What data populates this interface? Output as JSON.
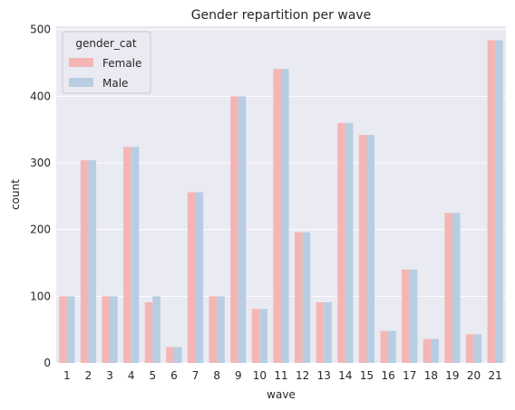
{
  "chart_data": {
    "type": "bar",
    "title": "Gender repartition per wave",
    "xlabel": "wave",
    "ylabel": "count",
    "categories": [
      "1",
      "2",
      "3",
      "4",
      "5",
      "6",
      "7",
      "8",
      "9",
      "10",
      "11",
      "12",
      "13",
      "14",
      "15",
      "16",
      "17",
      "18",
      "19",
      "20",
      "21"
    ],
    "series": [
      {
        "name": "Female",
        "color": "#f4b6b4",
        "values": [
          100,
          304,
          100,
          324,
          91,
          24,
          256,
          100,
          400,
          81,
          441,
          196,
          91,
          360,
          342,
          48,
          140,
          36,
          225,
          43,
          484
        ]
      },
      {
        "name": "Male",
        "color": "#b8cde2",
        "values": [
          100,
          304,
          100,
          324,
          100,
          24,
          256,
          100,
          400,
          81,
          441,
          196,
          91,
          360,
          342,
          48,
          140,
          36,
          225,
          43,
          484
        ]
      }
    ],
    "ylim": [
      0,
      505
    ],
    "yticks": [
      "0",
      "100",
      "200",
      "300",
      "400",
      "500"
    ],
    "grid": true,
    "legend_title": "gender_cat",
    "legend_position": "top-left",
    "background_color": "#eaeaf2"
  }
}
